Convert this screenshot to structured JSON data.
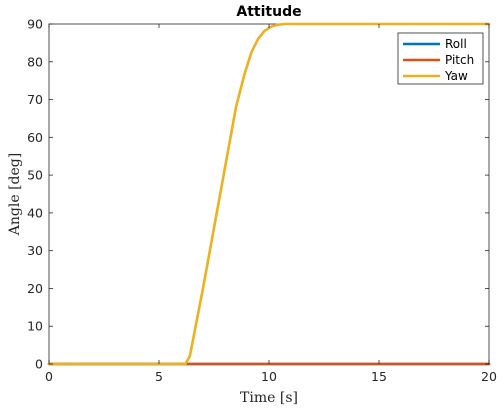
{
  "chart_data": {
    "type": "line",
    "title": "Attitude",
    "xlabel": "Time [s]",
    "ylabel": "Angle [deg]",
    "xlim": [
      0,
      20
    ],
    "ylim": [
      0,
      90
    ],
    "xticks": [
      0,
      5,
      10,
      15,
      20
    ],
    "yticks": [
      0,
      10,
      20,
      30,
      40,
      50,
      60,
      70,
      80,
      90
    ],
    "grid": false,
    "legend_position": "top-right",
    "series": [
      {
        "name": "Roll",
        "color": "#0072BD",
        "x": [
          0,
          20
        ],
        "y": [
          0,
          0
        ]
      },
      {
        "name": "Pitch",
        "color": "#D95319",
        "x": [
          0,
          20
        ],
        "y": [
          0,
          0
        ]
      },
      {
        "name": "Yaw",
        "color": "#EDB120",
        "x": [
          0,
          6.2,
          6.4,
          7.0,
          7.5,
          8.0,
          8.5,
          8.9,
          9.2,
          9.5,
          9.8,
          10.1,
          10.4,
          10.7,
          11.0,
          12.0,
          15.0,
          20.0
        ],
        "y": [
          0,
          0,
          2,
          20,
          36,
          52,
          68,
          77,
          82.5,
          86,
          88.2,
          89.3,
          89.8,
          90,
          90,
          90,
          90,
          90
        ]
      }
    ]
  }
}
